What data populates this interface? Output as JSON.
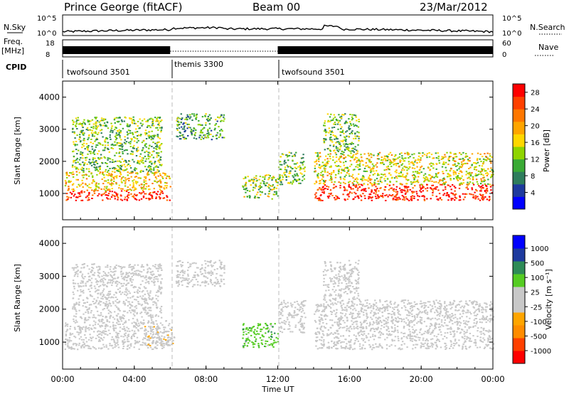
{
  "header": {
    "station": "Prince George (fitACF)",
    "beam": "Beam 00",
    "date": "23/Mar/2012"
  },
  "nsky_panel": {
    "left_label": "N.Sky",
    "right_label": "N.Search",
    "left_ticks": [
      "10^5",
      "10^0"
    ],
    "right_ticks": [
      "10^5",
      "10^0"
    ]
  },
  "freq_panel": {
    "left_label_line1": "Freq.",
    "left_label_line2": "[MHz]",
    "right_label": "Nave",
    "left_ticks": [
      "18",
      "8"
    ],
    "right_ticks": [
      "60",
      "0"
    ]
  },
  "cpid_panel": {
    "label": "CPID",
    "segments": [
      {
        "name": "twofsound 3501",
        "start_hour": 0,
        "end_hour": 6
      },
      {
        "name": "themis 3300",
        "start_hour": 6,
        "end_hour": 12
      },
      {
        "name": "twofsound 3501",
        "start_hour": 12,
        "end_hour": 24
      }
    ]
  },
  "x_axis": {
    "label": "Time UT",
    "ticks": [
      "00:00",
      "04:00",
      "08:00",
      "12:00",
      "16:00",
      "20:00",
      "00:00"
    ]
  },
  "chart_data": [
    {
      "type": "heatmap",
      "title": "",
      "xlabel": "Time UT",
      "ylabel": "Slant Range [km]",
      "x_unit": "hours UT",
      "xlim": [
        0,
        24
      ],
      "ylim": [
        180,
        4500
      ],
      "yticks": [
        "1000",
        "2000",
        "3000",
        "4000"
      ],
      "colorbar": {
        "label": "Power [dB]",
        "ticks": [
          "28",
          "24",
          "20",
          "16",
          "12",
          "8",
          "4"
        ],
        "range": [
          0,
          30
        ],
        "colors": [
          "#0000ff",
          "#1e3a9e",
          "#2e7d5c",
          "#3aaa35",
          "#8fd400",
          "#ffd700",
          "#ffa500",
          "#ff7700",
          "#ff4000",
          "#ff0000"
        ]
      },
      "scatter_regions": [
        {
          "t_start": 0.1,
          "t_end": 6.0,
          "range_low": 800,
          "range_high": 1100,
          "value": 28
        },
        {
          "t_start": 0.1,
          "t_end": 6.0,
          "range_low": 1100,
          "range_high": 1700,
          "value": 18
        },
        {
          "t_start": 0.5,
          "t_end": 5.5,
          "range_low": 1700,
          "range_high": 3400,
          "value": 12
        },
        {
          "t_start": 6.3,
          "t_end": 9.0,
          "range_low": 2700,
          "range_high": 3500,
          "value": 10
        },
        {
          "t_start": 10.0,
          "t_end": 12.0,
          "range_low": 850,
          "range_high": 1600,
          "value": 14
        },
        {
          "t_start": 12.0,
          "t_end": 13.5,
          "range_low": 1300,
          "range_high": 2300,
          "value": 12
        },
        {
          "t_start": 14.0,
          "t_end": 24.0,
          "range_low": 800,
          "range_high": 1300,
          "value": 28
        },
        {
          "t_start": 14.0,
          "t_end": 24.0,
          "range_low": 1300,
          "range_high": 2300,
          "value": 16
        },
        {
          "t_start": 14.5,
          "t_end": 16.5,
          "range_low": 2300,
          "range_high": 3500,
          "value": 12
        }
      ]
    },
    {
      "type": "heatmap",
      "title": "",
      "xlabel": "Time UT",
      "ylabel": "Slant Range [km]",
      "x_unit": "hours UT",
      "xlim": [
        0,
        24
      ],
      "ylim": [
        180,
        4500
      ],
      "yticks": [
        "1000",
        "2000",
        "3000",
        "4000"
      ],
      "colorbar": {
        "label": "Velocity [m s⁻¹]",
        "ticks": [
          "1000",
          "500",
          "100",
          "25",
          "-25",
          "-100",
          "-500",
          "-1000"
        ],
        "range": [
          -1000,
          1000
        ],
        "colors": [
          "#ff0000",
          "#ff4000",
          "#ff8c00",
          "#ffa500",
          "#c8c8c8",
          "#c8c8c8",
          "#55cc22",
          "#2e8b57",
          "#1e3a9e",
          "#0000ff"
        ]
      },
      "scatter_regions": [
        {
          "t_start": 0.1,
          "t_end": 6.0,
          "range_low": 800,
          "range_high": 1700,
          "value": 0
        },
        {
          "t_start": 0.5,
          "t_end": 5.5,
          "range_low": 1700,
          "range_high": 3400,
          "value": 0
        },
        {
          "t_start": 4.5,
          "t_end": 6.2,
          "range_low": 900,
          "range_high": 1500,
          "value": -120
        },
        {
          "t_start": 6.3,
          "t_end": 9.0,
          "range_low": 2700,
          "range_high": 3500,
          "value": 0
        },
        {
          "t_start": 10.0,
          "t_end": 12.0,
          "range_low": 850,
          "range_high": 1600,
          "value": 300
        },
        {
          "t_start": 12.0,
          "t_end": 13.5,
          "range_low": 1300,
          "range_high": 2300,
          "value": 0
        },
        {
          "t_start": 14.0,
          "t_end": 24.0,
          "range_low": 800,
          "range_high": 2300,
          "value": 0
        },
        {
          "t_start": 14.5,
          "t_end": 16.5,
          "range_low": 2300,
          "range_high": 3500,
          "value": 0
        }
      ]
    }
  ]
}
